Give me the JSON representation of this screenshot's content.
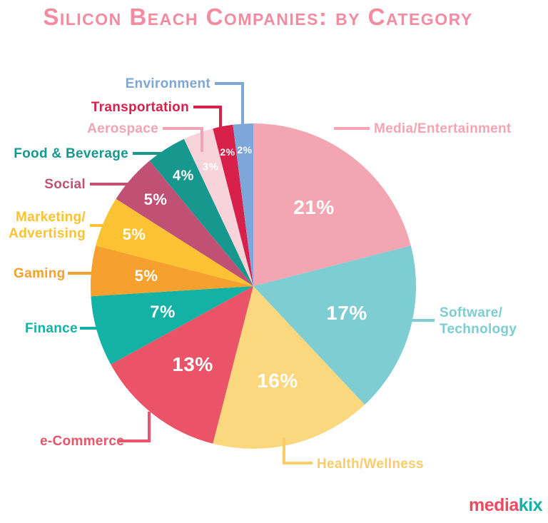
{
  "title": "Silicon Beach Companies: by Category",
  "logo": {
    "text_red": "media",
    "text_teal": "kix"
  },
  "colors": {
    "background": "#ffffff",
    "title": "#f58ba0",
    "pct_text": "#ffffff",
    "logo_media": "#ea4b61",
    "logo_kix": "#14b1a5"
  },
  "chart_data": {
    "type": "pie",
    "title": "Silicon Beach Companies: by Category",
    "direction": "clockwise",
    "start_angle": "12-o-clock",
    "legend_position": "callout-labels-around-pie",
    "slices": [
      {
        "label": "Media/Entertainment",
        "value_pct": 21,
        "pct_label": "21%",
        "color": "#f3a6b1"
      },
      {
        "label": "Software/Technology",
        "value_pct": 17,
        "pct_label": "17%",
        "color": "#7ecdd2"
      },
      {
        "label": "Health/Wellness",
        "value_pct": 16,
        "pct_label": "16%",
        "color": "#fbd87e",
        "label_color": "#fbcd68"
      },
      {
        "label": "e-Commerce",
        "value_pct": 13,
        "pct_label": "13%",
        "color": "#ea5368"
      },
      {
        "label": "Finance",
        "value_pct": 7,
        "pct_label": "7%",
        "color": "#14b1a5"
      },
      {
        "label": "Gaming",
        "value_pct": 5,
        "pct_label": "5%",
        "color": "#f6a12d"
      },
      {
        "label": "Marketing/Advertising",
        "value_pct": 5,
        "pct_label": "5%",
        "color": "#fbc333"
      },
      {
        "label": "Social",
        "value_pct": 5,
        "pct_label": "5%",
        "color": "#c05175"
      },
      {
        "label": "Food & Beverage",
        "value_pct": 4,
        "pct_label": "4%",
        "color": "#17988e"
      },
      {
        "label": "Aerospace",
        "value_pct": 3,
        "pct_label": "3%",
        "color": "#f8d3da",
        "label_color": "#f0a4b5"
      },
      {
        "label": "Transportation",
        "value_pct": 2,
        "pct_label": "2%",
        "color": "#d8214a"
      },
      {
        "label": "Environment",
        "value_pct": 2,
        "pct_label": "2%",
        "color": "#7ea6d8"
      }
    ]
  }
}
